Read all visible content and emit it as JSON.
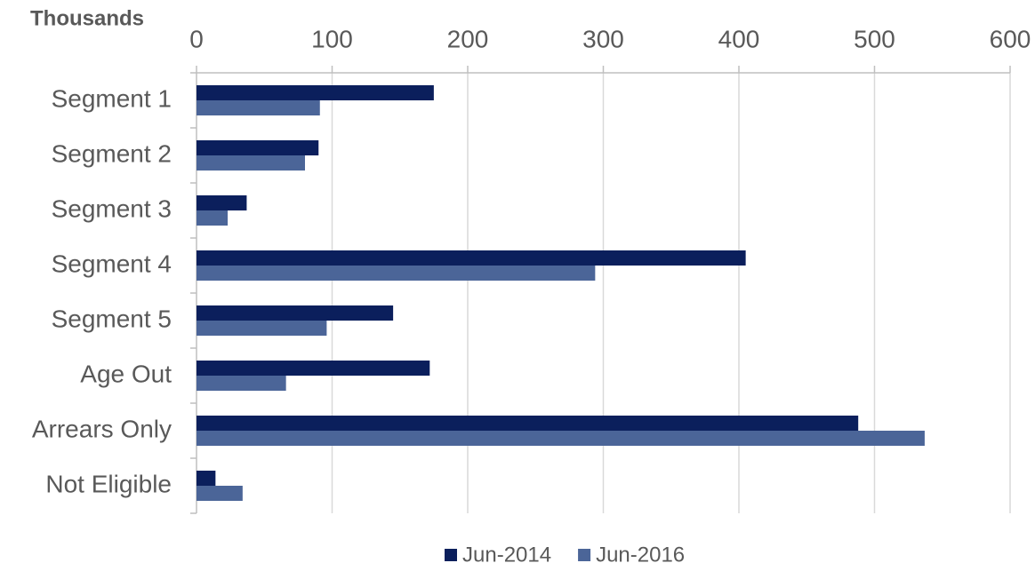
{
  "chart_data": {
    "type": "hbar",
    "axis_label": "Thousands",
    "categories": [
      "Segment 1",
      "Segment 2",
      "Segment 3",
      "Segment 4",
      "Segment 5",
      "Age Out",
      "Arrears Only",
      "Not Eligible"
    ],
    "series": [
      {
        "name": "Jun-2014",
        "color": "#0b1f5c",
        "values": [
          175,
          90,
          37,
          405,
          145,
          172,
          488,
          14
        ]
      },
      {
        "name": "Jun-2016",
        "color": "#4b6598",
        "values": [
          91,
          80,
          23,
          294,
          96,
          66,
          537,
          34
        ]
      }
    ],
    "xlim": [
      0,
      600
    ],
    "xticks": [
      0,
      100,
      200,
      300,
      400,
      500,
      600
    ],
    "grid": true,
    "legend": "bottom"
  }
}
